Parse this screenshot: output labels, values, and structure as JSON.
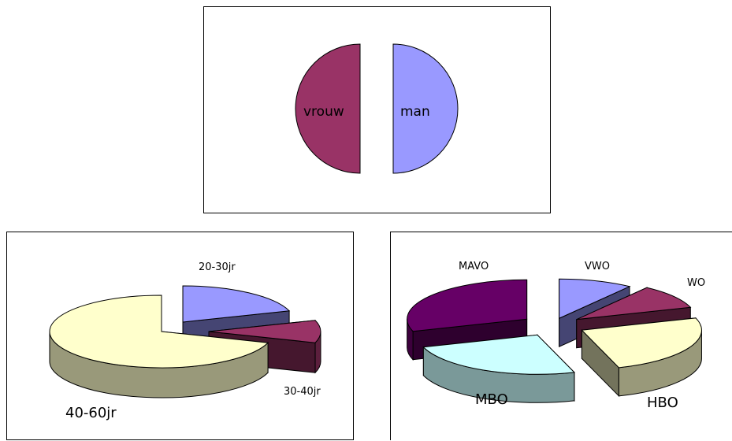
{
  "chart_data": [
    {
      "type": "pie",
      "categories": [
        "vrouw",
        "man"
      ],
      "values": [
        50,
        50
      ],
      "colors": [
        "#993366",
        "#9999ff"
      ]
    },
    {
      "type": "pie",
      "categories": [
        "20-30jr",
        "30-40jr",
        "40-60jr"
      ],
      "values": [
        20,
        10,
        70
      ],
      "colors": [
        "#9999ff",
        "#993366",
        "#ffffcc"
      ]
    },
    {
      "type": "pie",
      "categories": [
        "VWO",
        "WO",
        "HBO",
        "MBO",
        "MAVO"
      ],
      "values": [
        10,
        10,
        25,
        25,
        30
      ],
      "colors": [
        "#9999ff",
        "#993366",
        "#ffffcc",
        "#ccffff",
        "#660066"
      ]
    }
  ]
}
